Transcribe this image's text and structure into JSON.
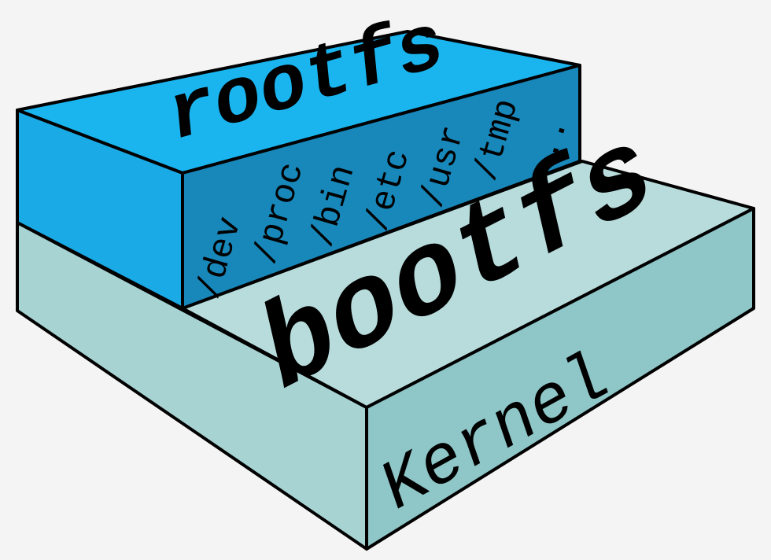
{
  "colors": {
    "rootfs_top": "#1ab5ef",
    "rootfs_left": "#1aaae6",
    "rootfs_front": "#1888bb",
    "bootfs_top": "#b8dcdc",
    "bootfs_left": "#a8d3d3",
    "bootfs_front": "#8fc6c8",
    "outline": "#000000",
    "background": "#f4f4f4"
  },
  "rootfs": {
    "label": "rootfs",
    "directories": [
      "/dev",
      "/proc",
      "/bin",
      "/etc",
      "/usr",
      "/tmp",
      ".."
    ]
  },
  "bootfs": {
    "label": "bootfs"
  },
  "kernel": {
    "label": "Kernel"
  }
}
